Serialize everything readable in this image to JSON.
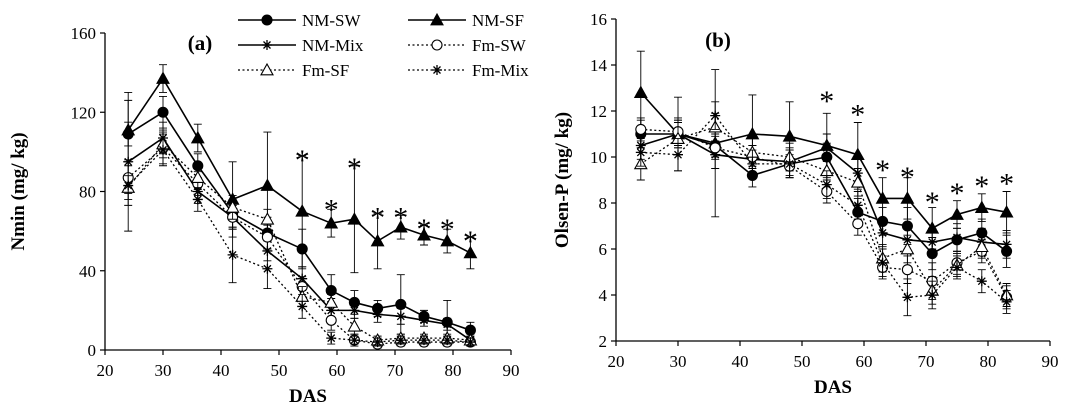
{
  "chart_data": [
    {
      "type": "line",
      "panel_label": "(a)",
      "xlabel": "DAS",
      "ylabel": "Nmin (mg/ kg)",
      "xlim": [
        20,
        90
      ],
      "ylim": [
        0,
        160
      ],
      "xticks": [
        "20",
        "30",
        "40",
        "50",
        "60",
        "70",
        "80",
        "90"
      ],
      "yticks": [
        "0",
        "40",
        "80",
        "120",
        "160"
      ],
      "legend_position": "top-right",
      "x": [
        24,
        30,
        36,
        42,
        48,
        54,
        59,
        63,
        67,
        71,
        75,
        79,
        83
      ],
      "series": [
        {
          "name": "NM-SW",
          "marker": "circle-filled",
          "line": "solid",
          "values": [
            109,
            120,
            93,
            69,
            59,
            51,
            30,
            24,
            21,
            23,
            17,
            14,
            10
          ],
          "errors": [
            6,
            8,
            6,
            7,
            8,
            10,
            8,
            6,
            4,
            15,
            3,
            11,
            4
          ]
        },
        {
          "name": "NM-SF",
          "marker": "triangle-filled",
          "line": "solid",
          "values": [
            111,
            137,
            107,
            76,
            83,
            70,
            64,
            66,
            55,
            62,
            58,
            55,
            49
          ],
          "errors": [
            15,
            7,
            7,
            19,
            27,
            28,
            7,
            27,
            14,
            6,
            5,
            6,
            8
          ]
        },
        {
          "name": "NM-Mix",
          "marker": "star",
          "line": "solid",
          "values": [
            95,
            107,
            80,
            67,
            50,
            36,
            20,
            20,
            18,
            17,
            15,
            13,
            5
          ],
          "errors": [
            35,
            8,
            6,
            6,
            5,
            6,
            6,
            4,
            4,
            4,
            3,
            3,
            3
          ]
        },
        {
          "name": "Fm-SW",
          "marker": "circle-open",
          "line": "dotted",
          "values": [
            87,
            102,
            84,
            67,
            57,
            32,
            15,
            5,
            3,
            4,
            4,
            4,
            4
          ],
          "errors": [
            8,
            8,
            6,
            6,
            6,
            5,
            5,
            3,
            2,
            2,
            2,
            2,
            2
          ]
        },
        {
          "name": "Fm-SF",
          "marker": "triangle-open",
          "line": "dotted",
          "values": [
            82,
            104,
            87,
            72,
            66,
            27,
            24,
            12,
            5,
            6,
            6,
            6,
            5
          ],
          "errors": [
            6,
            7,
            6,
            6,
            5,
            5,
            4,
            4,
            2,
            2,
            2,
            2,
            2
          ]
        },
        {
          "name": "Fm-Mix",
          "marker": "star",
          "line": "dotted",
          "values": [
            83,
            101,
            76,
            48,
            41,
            22,
            6,
            5,
            4,
            5,
            5,
            5,
            4
          ],
          "errors": [
            10,
            8,
            6,
            14,
            10,
            6,
            3,
            2,
            2,
            2,
            2,
            2,
            2
          ]
        }
      ],
      "annotations": [
        {
          "text": "*",
          "x": 54,
          "y": 99
        },
        {
          "text": "*",
          "x": 59,
          "y": 74
        },
        {
          "text": "*",
          "x": 63,
          "y": 95
        },
        {
          "text": "*",
          "x": 67,
          "y": 70
        },
        {
          "text": "*",
          "x": 71,
          "y": 70
        },
        {
          "text": "*",
          "x": 75,
          "y": 64
        },
        {
          "text": "*",
          "x": 79,
          "y": 64
        },
        {
          "text": "*",
          "x": 83,
          "y": 58
        }
      ]
    },
    {
      "type": "line",
      "panel_label": "(b)",
      "xlabel": "DAS",
      "ylabel": "Olsen-P (mg/ kg)",
      "xlim": [
        20,
        90
      ],
      "ylim": [
        2,
        16
      ],
      "xticks": [
        "20",
        "30",
        "40",
        "50",
        "60",
        "70",
        "80",
        "90"
      ],
      "yticks": [
        "2",
        "4",
        "6",
        "8",
        "10",
        "12",
        "14",
        "16"
      ],
      "x": [
        24,
        30,
        36,
        42,
        48,
        54,
        59,
        63,
        67,
        71,
        75,
        79,
        83
      ],
      "series": [
        {
          "name": "NM-SW",
          "marker": "circle-filled",
          "line": "solid",
          "values": [
            11.0,
            11.0,
            10.5,
            9.2,
            9.7,
            10.0,
            7.6,
            7.2,
            7.0,
            5.8,
            6.4,
            6.7,
            5.9
          ],
          "errors": [
            0.6,
            0.6,
            0.5,
            0.5,
            0.6,
            0.6,
            0.6,
            0.6,
            0.8,
            0.7,
            0.5,
            0.6,
            0.7
          ]
        },
        {
          "name": "NM-SF",
          "marker": "triangle-filled",
          "line": "solid",
          "values": [
            12.8,
            11.0,
            10.6,
            11.0,
            10.9,
            10.5,
            10.1,
            8.2,
            8.2,
            6.9,
            7.5,
            7.8,
            7.6
          ],
          "errors": [
            1.8,
            1.6,
            3.2,
            1.7,
            1.5,
            1.4,
            1.4,
            0.9,
            0.9,
            0.9,
            0.6,
            0.6,
            0.9
          ]
        },
        {
          "name": "NM-Mix",
          "marker": "star",
          "line": "solid",
          "values": [
            10.5,
            11.0,
            10.1,
            9.9,
            9.8,
            10.4,
            9.3,
            6.7,
            6.4,
            6.3,
            6.5,
            6.3,
            6.2
          ],
          "errors": [
            0.6,
            0.6,
            0.6,
            0.6,
            0.6,
            0.6,
            0.7,
            0.6,
            0.6,
            0.6,
            0.6,
            0.6,
            0.6
          ]
        },
        {
          "name": "Fm-SW",
          "marker": "circle-open",
          "line": "dotted",
          "values": [
            11.2,
            11.1,
            10.4,
            10.0,
            9.6,
            8.5,
            7.1,
            5.2,
            5.1,
            4.6,
            5.4,
            5.9,
            3.9
          ],
          "errors": [
            0.5,
            0.6,
            0.5,
            0.5,
            0.5,
            0.5,
            0.5,
            0.5,
            0.6,
            0.8,
            0.5,
            0.5,
            0.5
          ]
        },
        {
          "name": "Fm-SF",
          "marker": "triangle-open",
          "line": "dotted",
          "values": [
            9.7,
            10.8,
            11.3,
            10.2,
            10.0,
            9.4,
            8.9,
            5.6,
            6.0,
            4.2,
            5.3,
            6.1,
            4.0
          ],
          "errors": [
            0.7,
            0.7,
            0.6,
            0.6,
            0.6,
            0.6,
            0.6,
            0.6,
            0.6,
            0.6,
            0.5,
            0.5,
            0.5
          ]
        },
        {
          "name": "Fm-Mix",
          "marker": "star",
          "line": "dotted",
          "values": [
            10.2,
            10.1,
            11.8,
            9.7,
            9.7,
            8.8,
            7.9,
            5.4,
            3.9,
            4.0,
            5.2,
            4.6,
            3.7
          ],
          "errors": [
            0.6,
            0.7,
            0.6,
            0.6,
            0.6,
            0.6,
            0.6,
            0.6,
            0.8,
            0.6,
            0.5,
            0.5,
            0.5
          ]
        }
      ],
      "annotations": [
        {
          "text": "*",
          "x": 54,
          "y": 12.7
        },
        {
          "text": "*",
          "x": 59,
          "y": 12.1
        },
        {
          "text": "*",
          "x": 63,
          "y": 9.7
        },
        {
          "text": "*",
          "x": 67,
          "y": 9.4
        },
        {
          "text": "*",
          "x": 71,
          "y": 8.3
        },
        {
          "text": "*",
          "x": 75,
          "y": 8.7
        },
        {
          "text": "*",
          "x": 79,
          "y": 9.0
        },
        {
          "text": "*",
          "x": 83,
          "y": 9.1
        }
      ]
    }
  ]
}
